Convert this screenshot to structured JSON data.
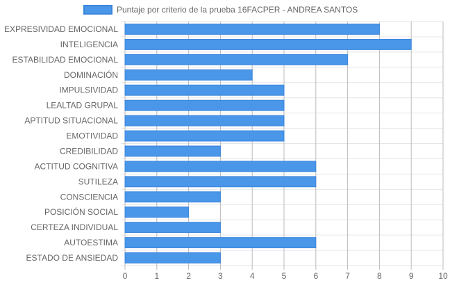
{
  "chart_data": {
    "type": "bar",
    "orientation": "horizontal",
    "legend": {
      "label": "Puntaje por criterio de la prueba 16FACPER - ANDREA SANTOS",
      "position": "top"
    },
    "categories": [
      "EXPRESIVIDAD EMOCIONAL",
      "INTELIGENCIA",
      "ESTABILIDAD EMOCIONAL",
      "DOMINACIÓN",
      "IMPULSIVIDAD",
      "LEALTAD GRUPAL",
      "APTITUD SITUACIONAL",
      "EMOTIVIDAD",
      "CREDIBILIDAD",
      "ACTITUD COGNITIVA",
      "SUTILEZA",
      "CONSCIENCIA",
      "POSICIÓN SOCIAL",
      "CERTEZA INDIVIDUAL",
      "AUTOESTIMA",
      "ESTADO DE ANSIEDAD"
    ],
    "series": [
      {
        "name": "Puntaje por criterio de la prueba 16FACPER - ANDREA SANTOS",
        "values": [
          8,
          9,
          7,
          4,
          5,
          5,
          5,
          5,
          3,
          6,
          6,
          3,
          2,
          3,
          6,
          3
        ]
      }
    ],
    "xlim": [
      0,
      10
    ],
    "xticks": [
      0,
      1,
      2,
      3,
      4,
      5,
      6,
      7,
      8,
      9,
      10
    ],
    "grid": true,
    "colors": {
      "bar_fill": "#4a97e9",
      "bar_stroke": "#3a86dd",
      "grid": "#e6e6e6",
      "grid_vertical": "#bbbbbb",
      "text": "#666666"
    }
  }
}
